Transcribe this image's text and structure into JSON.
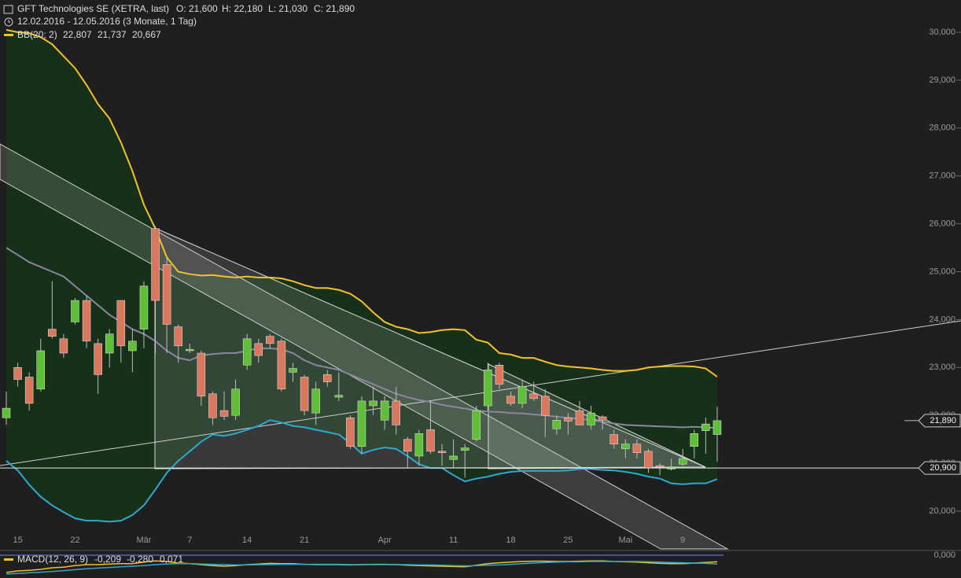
{
  "chart_data": {
    "type": "candlestick",
    "title": "GFT Technologies SE (XETRA, last)",
    "quote": [
      "O: 21,600",
      "H: 22,180",
      "L: 21,030",
      "C: 21,890"
    ],
    "period": "12.02.2016 - 12.05.2016 (3 Monate, 1 Tag)",
    "categories": [
      null,
      "15",
      null,
      null,
      null,
      null,
      "22",
      null,
      null,
      null,
      null,
      null,
      "Mär",
      null,
      null,
      null,
      "7",
      null,
      null,
      null,
      null,
      "14",
      null,
      null,
      null,
      null,
      "21",
      null,
      null,
      null,
      null,
      null,
      null,
      "Apr",
      null,
      null,
      null,
      null,
      null,
      "11",
      null,
      null,
      null,
      null,
      "18",
      null,
      null,
      null,
      null,
      "25",
      null,
      null,
      null,
      null,
      "Mai",
      null,
      null,
      null,
      null,
      "9",
      null,
      null,
      null
    ],
    "open": [
      21.95,
      23.0,
      22.8,
      22.55,
      23.8,
      23.6,
      23.95,
      24.4,
      23.5,
      23.3,
      24.4,
      23.35,
      23.8,
      25.9,
      25.15,
      23.85,
      23.35,
      23.3,
      22.45,
      22.1,
      22.0,
      23.05,
      23.5,
      23.65,
      23.55,
      22.9,
      22.8,
      22.05,
      22.85,
      22.38,
      21.95,
      21.35,
      22.2,
      21.9,
      22.3,
      21.5,
      21.15,
      21.7,
      21.25,
      21.08,
      21.27,
      21.5,
      22.2,
      23.05,
      22.4,
      22.25,
      22.45,
      22.4,
      21.72,
      21.95,
      22.1,
      21.8,
      21.97,
      21.6,
      21.3,
      21.4,
      21.25,
      20.95,
      20.88,
      20.98,
      21.35,
      21.68,
      21.6
    ],
    "high": [
      22.5,
      23.1,
      22.9,
      23.6,
      24.8,
      23.7,
      24.45,
      24.5,
      23.6,
      23.8,
      24.4,
      23.8,
      24.8,
      25.95,
      25.3,
      23.9,
      23.5,
      23.35,
      22.5,
      22.5,
      22.75,
      23.7,
      23.6,
      23.7,
      23.6,
      23.1,
      22.85,
      22.7,
      22.95,
      22.9,
      22.0,
      22.4,
      22.6,
      22.4,
      22.6,
      21.55,
      21.7,
      22.3,
      21.4,
      21.5,
      21.4,
      22.2,
      23.1,
      23.1,
      22.5,
      22.75,
      22.7,
      22.55,
      22.0,
      22.05,
      22.3,
      22.2,
      22.0,
      21.7,
      21.5,
      21.5,
      21.3,
      21.0,
      21.1,
      21.3,
      21.7,
      21.95,
      22.18
    ],
    "low": [
      21.8,
      22.6,
      22.1,
      22.5,
      23.6,
      23.2,
      23.9,
      23.4,
      22.45,
      23.0,
      23.1,
      22.9,
      23.4,
      23.3,
      23.3,
      23.1,
      23.3,
      22.2,
      21.8,
      21.9,
      21.9,
      22.95,
      23.1,
      23.4,
      22.5,
      22.7,
      22.0,
      21.8,
      22.6,
      22.3,
      21.3,
      21.2,
      22.0,
      21.7,
      21.6,
      20.9,
      20.95,
      21.2,
      20.95,
      20.9,
      20.7,
      21.45,
      22.1,
      22.55,
      22.2,
      22.15,
      22.3,
      21.55,
      21.6,
      21.6,
      21.8,
      21.7,
      21.7,
      21.3,
      21.1,
      21.1,
      20.8,
      20.75,
      20.85,
      20.95,
      21.1,
      21.2,
      21.03
    ],
    "close": [
      22.15,
      22.75,
      22.25,
      23.35,
      23.65,
      23.3,
      24.4,
      23.55,
      22.85,
      23.7,
      23.45,
      23.55,
      24.7,
      24.4,
      23.9,
      23.45,
      23.38,
      22.4,
      21.95,
      21.98,
      22.55,
      23.6,
      23.25,
      23.5,
      22.55,
      22.98,
      22.1,
      22.55,
      22.7,
      22.42,
      21.35,
      22.3,
      22.3,
      22.3,
      21.8,
      21.25,
      21.62,
      21.25,
      21.22,
      21.15,
      21.32,
      22.1,
      22.95,
      22.65,
      22.25,
      22.6,
      22.35,
      22.0,
      21.9,
      21.88,
      21.8,
      22.05,
      21.9,
      21.4,
      21.4,
      21.22,
      20.9,
      20.92,
      20.92,
      21.1,
      21.62,
      21.82,
      21.89
    ],
    "up_color": "#5fbf36",
    "down_color": "#d9785e",
    "ylim": [
      19.2,
      30.6
    ],
    "yticks": [
      {
        "value": 20,
        "label": "20,000"
      },
      {
        "value": 21,
        "label": "21,000"
      },
      {
        "value": 22,
        "label": "22,000"
      },
      {
        "value": 23,
        "label": "23,000"
      },
      {
        "value": 24,
        "label": "24,000"
      },
      {
        "value": 25,
        "label": "25,000"
      },
      {
        "value": 26,
        "label": "26,000"
      },
      {
        "value": 27,
        "label": "27,000"
      },
      {
        "value": 28,
        "label": "28,000"
      },
      {
        "value": 29,
        "label": "29,000"
      },
      {
        "value": 30,
        "label": "30,000"
      }
    ],
    "price_lines": [
      {
        "value": 21.89,
        "label": "21,890"
      },
      {
        "value": 20.9,
        "label": "20,900"
      }
    ],
    "bands": {
      "name": "BB(20; 2)",
      "fill": "#17301a",
      "series": [
        {
          "color": "#f2c12e",
          "value_label": "22,807",
          "values": [
            30.05,
            30.0,
            29.98,
            29.9,
            29.75,
            29.5,
            29.25,
            28.9,
            28.5,
            28.2,
            27.7,
            27.1,
            26.4,
            25.9,
            25.3,
            25.0,
            24.95,
            24.92,
            24.93,
            24.9,
            24.88,
            24.9,
            24.88,
            24.88,
            24.86,
            24.8,
            24.72,
            24.66,
            24.66,
            24.62,
            24.54,
            24.38,
            24.15,
            23.95,
            23.85,
            23.8,
            23.72,
            23.74,
            23.78,
            23.8,
            23.78,
            23.58,
            23.52,
            23.3,
            23.27,
            23.2,
            23.2,
            23.12,
            23.05,
            23.02,
            23.0,
            22.98,
            22.95,
            22.93,
            22.93,
            22.95,
            23.0,
            23.02,
            23.03,
            23.03,
            23.02,
            22.98,
            22.807
          ]
        },
        {
          "color": "#8a86a0",
          "value_label": "21,737",
          "values": [
            25.5,
            25.35,
            25.2,
            25.1,
            25.0,
            24.9,
            24.7,
            24.5,
            24.3,
            24.1,
            23.95,
            23.8,
            23.7,
            23.55,
            23.35,
            23.2,
            23.15,
            23.25,
            23.28,
            23.3,
            23.3,
            23.35,
            23.4,
            23.4,
            23.38,
            23.3,
            23.15,
            23.05,
            23.0,
            22.95,
            22.85,
            22.75,
            22.65,
            22.55,
            22.45,
            22.38,
            22.32,
            22.28,
            22.22,
            22.18,
            22.14,
            22.1,
            22.08,
            22.07,
            22.05,
            22.04,
            22.02,
            22.0,
            21.97,
            21.95,
            21.93,
            21.9,
            21.87,
            21.83,
            21.8,
            21.79,
            21.78,
            21.77,
            21.76,
            21.75,
            21.76,
            21.75,
            21.737
          ]
        },
        {
          "color": "#2fa8d0",
          "value_label": "20,667",
          "values": [
            21.05,
            20.85,
            20.55,
            20.3,
            20.12,
            19.98,
            19.85,
            19.8,
            19.8,
            19.78,
            19.8,
            19.92,
            20.12,
            20.45,
            20.8,
            21.05,
            21.25,
            21.45,
            21.6,
            21.57,
            21.62,
            21.7,
            21.78,
            21.9,
            21.85,
            21.78,
            21.75,
            21.7,
            21.65,
            21.6,
            21.42,
            21.2,
            21.28,
            21.33,
            21.3,
            21.15,
            20.98,
            20.9,
            20.9,
            20.75,
            20.62,
            20.68,
            20.72,
            20.78,
            20.82,
            20.84,
            20.84,
            20.84,
            20.84,
            20.85,
            20.88,
            20.88,
            20.86,
            20.85,
            20.82,
            20.78,
            20.72,
            20.68,
            20.58,
            20.56,
            20.58,
            20.58,
            20.667
          ]
        }
      ]
    },
    "macd": {
      "name": "MACD(12, 26, 9)",
      "ylim": [
        -0.725,
        0.15
      ],
      "yticks": [
        {
          "value": 0,
          "label": "0,000"
        }
      ],
      "histogram_label": "0,071",
      "series": [
        {
          "color": "#f2c12e",
          "value_label": "-0,209",
          "values": [
            -0.55,
            -0.5,
            -0.48,
            -0.45,
            -0.4,
            -0.38,
            -0.33,
            -0.3,
            -0.3,
            -0.28,
            -0.27,
            -0.27,
            -0.22,
            -0.18,
            -0.2,
            -0.25,
            -0.27,
            -0.3,
            -0.33,
            -0.35,
            -0.33,
            -0.3,
            -0.28,
            -0.26,
            -0.27,
            -0.27,
            -0.29,
            -0.3,
            -0.3,
            -0.3,
            -0.31,
            -0.3,
            -0.29,
            -0.29,
            -0.3,
            -0.32,
            -0.33,
            -0.34,
            -0.35,
            -0.36,
            -0.37,
            -0.32,
            -0.27,
            -0.24,
            -0.22,
            -0.2,
            -0.19,
            -0.19,
            -0.2,
            -0.2,
            -0.19,
            -0.18,
            -0.18,
            -0.2,
            -0.21,
            -0.22,
            -0.24,
            -0.26,
            -0.27,
            -0.27,
            -0.25,
            -0.23,
            -0.209
          ]
        },
        {
          "color": "#2fa8d0",
          "value_label": "-0,280",
          "values": [
            -0.6,
            -0.58,
            -0.56,
            -0.54,
            -0.52,
            -0.49,
            -0.46,
            -0.43,
            -0.41,
            -0.39,
            -0.37,
            -0.35,
            -0.33,
            -0.3,
            -0.28,
            -0.27,
            -0.27,
            -0.28,
            -0.29,
            -0.3,
            -0.31,
            -0.31,
            -0.3,
            -0.3,
            -0.29,
            -0.29,
            -0.29,
            -0.29,
            -0.29,
            -0.29,
            -0.3,
            -0.3,
            -0.3,
            -0.3,
            -0.3,
            -0.3,
            -0.31,
            -0.31,
            -0.32,
            -0.33,
            -0.34,
            -0.33,
            -0.32,
            -0.31,
            -0.29,
            -0.27,
            -0.25,
            -0.23,
            -0.22,
            -0.21,
            -0.21,
            -0.2,
            -0.2,
            -0.2,
            -0.2,
            -0.2,
            -0.21,
            -0.22,
            -0.23,
            -0.24,
            -0.25,
            -0.26,
            -0.28
          ]
        }
      ]
    }
  }
}
